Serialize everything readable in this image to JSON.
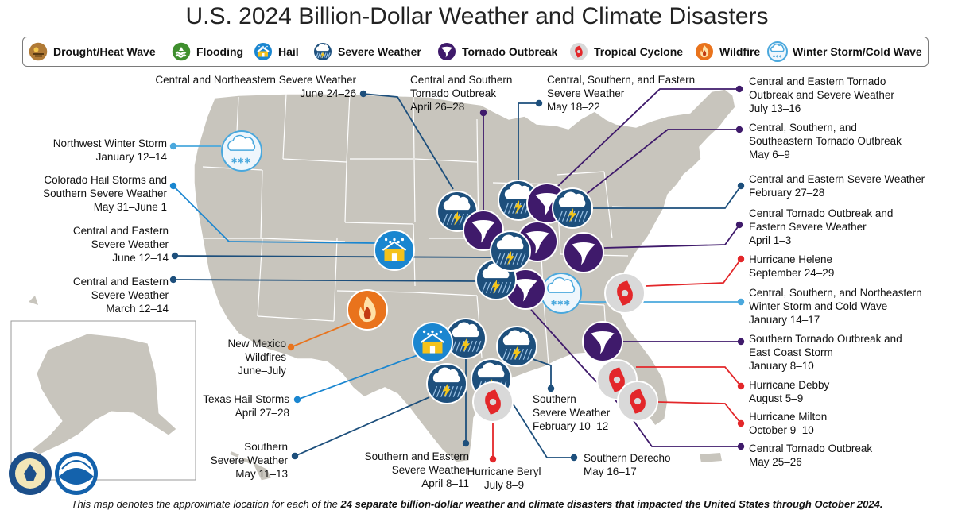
{
  "title": "U.S. 2024 Billion-Dollar Weather and Climate Disasters",
  "legend": [
    {
      "label": "Drought/Heat Wave",
      "icon": "drought-icon",
      "color": "#a0702a"
    },
    {
      "label": "Flooding",
      "icon": "flooding-icon",
      "color": "#3f8f2e"
    },
    {
      "label": "Hail",
      "icon": "hail-icon",
      "color": "#1a86d0"
    },
    {
      "label": "Severe Weather",
      "icon": "severe-weather-icon",
      "color": "#1d4f7c"
    },
    {
      "label": "Tornado Outbreak",
      "icon": "tornado-icon",
      "color": "#3f1a6b"
    },
    {
      "label": "Tropical Cyclone",
      "icon": "tropical-cyclone-icon",
      "color": "#e3272a"
    },
    {
      "label": "Wildfire",
      "icon": "wildfire-icon",
      "color": "#e9731c"
    },
    {
      "label": "Winter Storm/Cold Wave",
      "icon": "winter-storm-icon",
      "color": "#4aa8dd"
    }
  ],
  "events": [
    {
      "name": "Central and Northeastern Severe Weather",
      "dates": "June 24–26",
      "type": "severe-weather"
    },
    {
      "name": "Central and Southern Tornado Outbreak",
      "dates": "April 26–28",
      "type": "tornado"
    },
    {
      "name": "Central, Southern, and Eastern Severe Weather",
      "dates": "May 18–22",
      "type": "severe-weather"
    },
    {
      "name": "Central and Eastern Tornado Outbreak and Severe Weather",
      "dates": "July 13–16",
      "type": "tornado"
    },
    {
      "name": "Central, Southern, and Southeastern Tornado Outbreak",
      "dates": "May 6–9",
      "type": "tornado"
    },
    {
      "name": "Central and Eastern Severe Weather",
      "dates": "February 27–28",
      "type": "severe-weather"
    },
    {
      "name": "Central Tornado Outbreak and Eastern Severe Weather",
      "dates": "April 1–3",
      "type": "tornado"
    },
    {
      "name": "Hurricane Helene",
      "dates": "September 24–29",
      "type": "tropical-cyclone"
    },
    {
      "name": "Central, Southern, and Northeastern Winter Storm and Cold Wave",
      "dates": "January 14–17",
      "type": "winter-storm"
    },
    {
      "name": "Southern Tornado Outbreak and East Coast Storm",
      "dates": "January 8–10",
      "type": "tornado"
    },
    {
      "name": "Hurricane Debby",
      "dates": "August 5–9",
      "type": "tropical-cyclone"
    },
    {
      "name": "Hurricane Milton",
      "dates": "October 9–10",
      "type": "tropical-cyclone"
    },
    {
      "name": "Central Tornado Outbreak",
      "dates": "May 25–26",
      "type": "tornado"
    },
    {
      "name": "Southern Derecho",
      "dates": "May 16–17",
      "type": "severe-weather"
    },
    {
      "name": "Hurricane Beryl",
      "dates": "July 8–9",
      "type": "tropical-cyclone"
    },
    {
      "name": "Southern and Eastern Severe Weather",
      "dates": "April 8–11",
      "type": "severe-weather"
    },
    {
      "name": "Southern Severe Weather",
      "dates": "February 10–12",
      "type": "severe-weather"
    },
    {
      "name": "Southern Severe Weather",
      "dates": "May 11–13",
      "type": "severe-weather"
    },
    {
      "name": "Texas Hail Storms",
      "dates": "April 27–28",
      "type": "hail"
    },
    {
      "name": "New Mexico Wildfires",
      "dates": "June–July",
      "type": "wildfire"
    },
    {
      "name": "Central and Eastern Severe Weather",
      "dates": "March 12–14",
      "type": "severe-weather"
    },
    {
      "name": "Central and Eastern Severe Weather",
      "dates": "June 12–14",
      "type": "severe-weather"
    },
    {
      "name": "Colorado Hail Storms and Southern Severe Weather",
      "dates": "May 31–June 1",
      "type": "hail"
    },
    {
      "name": "Northwest Winter Storm",
      "dates": "January 12–14",
      "type": "winter-storm"
    }
  ],
  "labels": {
    "ne_sw": [
      "Central and Northeastern Severe Weather",
      "June 24–26"
    ],
    "cs_to": [
      "Central and Southern",
      "Tornado Outbreak",
      "April 26–28"
    ],
    "cse_sw": [
      "Central, Southern, and Eastern",
      "Severe Weather",
      "May 18–22"
    ],
    "ce_to": [
      "Central and Eastern Tornado",
      "Outbreak and Severe Weather",
      "July 13–16"
    ],
    "css_to": [
      "Central, Southern, and",
      "Southeastern Tornado Outbreak",
      "May 6–9"
    ],
    "ce_sw_feb": [
      "Central and Eastern Severe Weather",
      "February 27–28"
    ],
    "ct_es": [
      "Central Tornado Outbreak and",
      "Eastern Severe Weather",
      "April 1–3"
    ],
    "helene": [
      "Hurricane Helene",
      "September 24–29"
    ],
    "csn_ws": [
      "Central, Southern, and Northeastern",
      "Winter Storm and Cold Wave",
      "January 14–17"
    ],
    "st_ec": [
      "Southern Tornado Outbreak and",
      "East Coast Storm",
      "January 8–10"
    ],
    "debby": [
      "Hurricane Debby",
      "August 5–9"
    ],
    "milton": [
      "Hurricane Milton",
      "October 9–10"
    ],
    "ct_may": [
      "Central Tornado Outbreak",
      "May 25–26"
    ],
    "derecho": [
      "Southern Derecho",
      "May 16–17"
    ],
    "beryl": [
      "Hurricane Beryl",
      "July 8–9"
    ],
    "se_sw": [
      "Southern and Eastern",
      "Severe Weather",
      "April 8–11"
    ],
    "s_sw_feb": [
      "Southern",
      "Severe Weather",
      "February 10–12"
    ],
    "s_sw_may": [
      "Southern",
      "Severe Weather",
      "May 11–13"
    ],
    "tx_hail": [
      "Texas Hail Storms",
      "April 27–28"
    ],
    "nm_fire": [
      "New Mexico",
      "Wildfires",
      "June–July"
    ],
    "ce_sw_mar": [
      "Central and Eastern",
      "Severe Weather",
      "March 12–14"
    ],
    "ce_sw_jun": [
      "Central and Eastern",
      "Severe Weather",
      "June 12–14"
    ],
    "co_hail": [
      "Colorado Hail Storms and",
      "Southern Severe Weather",
      "May 31–June 1"
    ],
    "nw_ws": [
      "Northwest Winter Storm",
      "January 12–14"
    ]
  },
  "footer": {
    "prefix": "This map denotes the approximate location for each of the ",
    "bold": "24 separate billion-dollar weather and climate disasters that impacted the United States through October 2024.",
    "suffix": ""
  },
  "colors": {
    "land": "#c8c5bd",
    "border": "#ffffff",
    "severe": "#1d4f7c",
    "tornado": "#3f1a6b",
    "cyclone": "#e3272a",
    "hail": "#1a86d0",
    "winter": "#4aa8dd",
    "wildfire": "#e9731c"
  }
}
